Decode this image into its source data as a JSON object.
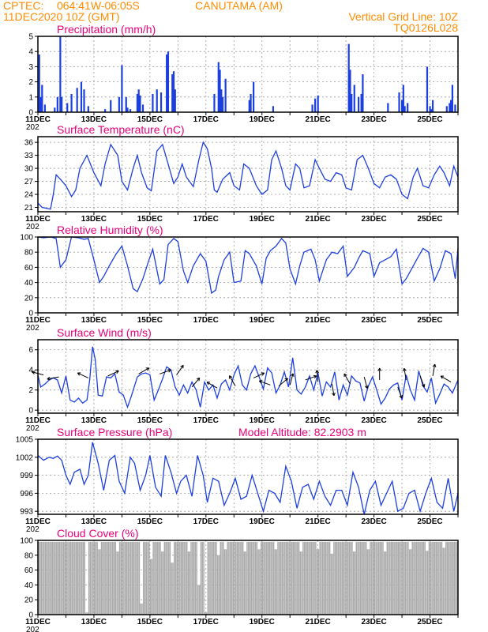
{
  "header": {
    "agency": "CPTEC:",
    "coords": "064:41W-06:05S",
    "station": "CANUTAMA (AM)",
    "run": "11DEC2020 10Z (GMT)",
    "grid_note": "Vertical Grid Line: 10Z",
    "code": "TQ0126L028"
  },
  "x_labels": [
    "11DEC",
    "13DEC",
    "15DEC",
    "17DEC",
    "19DEC",
    "21DEC",
    "23DEC",
    "25DEC"
  ],
  "x_sub_label": "202",
  "colors": {
    "line": "#1c3fe0",
    "bar": "#1c3fe0",
    "cloud": "#aaaaaa",
    "title": "#e8007a",
    "header": "#ff8c00"
  },
  "chart_data": [
    {
      "type": "bar",
      "title": "Precipitation (mm/h)",
      "ylim": [
        0,
        5
      ],
      "yticks": [
        0,
        1,
        2,
        3,
        4,
        5
      ],
      "x_range_days": [
        0,
        15
      ],
      "x": [
        0.05,
        0.1,
        0.15,
        0.25,
        0.6,
        0.7,
        0.8,
        0.85,
        1.05,
        1.2,
        1.4,
        1.55,
        1.65,
        1.8,
        2.4,
        2.6,
        2.9,
        3.0,
        3.15,
        3.2,
        3.3,
        3.55,
        3.6,
        3.65,
        3.75,
        4.1,
        4.25,
        4.4,
        4.6,
        4.65,
        4.8,
        4.85,
        4.9,
        6.3,
        6.45,
        6.5,
        6.55,
        6.6,
        6.7,
        7.55,
        7.6,
        7.7,
        8.4,
        9.8,
        9.9,
        10.0,
        11.1,
        11.15,
        11.2,
        11.3,
        11.45,
        11.55,
        11.6,
        12.5,
        12.9,
        13.0,
        13.05,
        13.1,
        13.2,
        13.9,
        14.0,
        14.05,
        14.1,
        14.6,
        14.7,
        14.75,
        14.8,
        14.9
      ],
      "values": [
        3.8,
        1.0,
        1.8,
        0.5,
        0.3,
        1.0,
        5.0,
        1.0,
        0.6,
        1.2,
        1.6,
        2.0,
        1.5,
        0.4,
        0.2,
        0.8,
        1.0,
        3.1,
        1.0,
        0.3,
        0.2,
        1.2,
        1.5,
        1.1,
        0.5,
        1.2,
        1.5,
        1.3,
        3.8,
        4.0,
        2.5,
        2.7,
        1.5,
        1.2,
        3.3,
        2.8,
        1.5,
        1.0,
        2.2,
        0.8,
        1.2,
        2.0,
        0.4,
        0.5,
        0.9,
        1.1,
        4.5,
        2.8,
        1.2,
        1.8,
        1.0,
        1.2,
        2.5,
        0.6,
        1.3,
        0.8,
        1.8,
        0.4,
        0.6,
        3.0,
        0.4,
        0.2,
        0.8,
        0.4,
        0.6,
        0.8,
        1.8,
        0.5
      ]
    },
    {
      "type": "line",
      "title": "Surface Temperature (nC)",
      "ylim": [
        20,
        37.3
      ],
      "yticks": [
        21,
        24,
        27,
        30,
        33,
        36
      ],
      "x_range_days": [
        0,
        15
      ],
      "x": [
        0,
        0.15,
        0.3,
        0.45,
        0.55,
        0.65,
        0.8,
        1.0,
        1.2,
        1.35,
        1.5,
        1.75,
        2.0,
        2.25,
        2.4,
        2.6,
        2.85,
        3.0,
        3.2,
        3.4,
        3.55,
        3.7,
        3.9,
        4.05,
        4.25,
        4.45,
        4.65,
        4.85,
        5.0,
        5.15,
        5.3,
        5.55,
        5.75,
        5.9,
        6.05,
        6.2,
        6.3,
        6.4,
        6.6,
        6.85,
        7.0,
        7.2,
        7.35,
        7.55,
        7.8,
        8.0,
        8.2,
        8.35,
        8.5,
        8.7,
        8.85,
        9.0,
        9.2,
        9.35,
        9.5,
        9.7,
        9.9,
        10.05,
        10.25,
        10.45,
        10.65,
        10.85,
        11.0,
        11.2,
        11.4,
        11.6,
        11.8,
        12.0,
        12.2,
        12.4,
        12.6,
        12.8,
        13.0,
        13.2,
        13.4,
        13.55,
        13.75,
        13.95,
        14.15,
        14.35,
        14.5,
        14.7,
        14.85,
        15.0
      ],
      "values": [
        22.0,
        21.0,
        20.8,
        20.6,
        24.0,
        28.5,
        27.5,
        26.0,
        23.5,
        25.0,
        30.0,
        33.0,
        29.0,
        26.0,
        31.0,
        35.5,
        33.0,
        27.0,
        25.0,
        30.0,
        33.0,
        29.0,
        25.5,
        24.8,
        34.0,
        35.5,
        31.0,
        26.5,
        28.0,
        31.0,
        28.0,
        25.8,
        32.0,
        36.0,
        34.5,
        30.0,
        25.0,
        24.5,
        27.5,
        29.0,
        26.0,
        25.0,
        31.0,
        30.0,
        26.0,
        24.0,
        25.0,
        32.0,
        34.0,
        30.0,
        26.0,
        25.0,
        31.0,
        30.0,
        25.5,
        26.0,
        32.0,
        30.0,
        27.5,
        27.0,
        29.0,
        28.5,
        25.5,
        25.0,
        32.0,
        33.0,
        30.0,
        26.5,
        25.5,
        28.0,
        28.5,
        27.5,
        24.0,
        23.0,
        28.0,
        30.0,
        26.0,
        25.5,
        28.5,
        30.5,
        29.0,
        26.0,
        30.5,
        28.0
      ]
    },
    {
      "type": "line",
      "title": "Relative Humidity (%)",
      "ylim": [
        0,
        100
      ],
      "yticks": [
        0,
        20,
        40,
        60,
        80,
        100
      ],
      "x_range_days": [
        0,
        15
      ],
      "x": [
        0,
        0.2,
        0.45,
        0.65,
        0.8,
        1.0,
        1.2,
        1.45,
        1.65,
        1.8,
        2.0,
        2.2,
        2.35,
        2.55,
        2.8,
        3.0,
        3.2,
        3.4,
        3.55,
        3.75,
        3.95,
        4.1,
        4.35,
        4.5,
        4.65,
        4.85,
        5.0,
        5.2,
        5.35,
        5.55,
        5.8,
        6.0,
        6.2,
        6.35,
        6.45,
        6.65,
        6.85,
        7.0,
        7.25,
        7.4,
        7.55,
        7.8,
        8.0,
        8.15,
        8.3,
        8.5,
        8.7,
        8.85,
        9.0,
        9.2,
        9.35,
        9.5,
        9.75,
        9.9,
        10.05,
        10.3,
        10.5,
        10.7,
        10.9,
        11.05,
        11.3,
        11.45,
        11.6,
        11.85,
        12.0,
        12.2,
        12.4,
        12.6,
        12.8,
        13.0,
        13.15,
        13.3,
        13.55,
        13.75,
        13.95,
        14.15,
        14.35,
        14.55,
        14.75,
        14.9,
        15.0
      ],
      "values": [
        100,
        99,
        100,
        98,
        60,
        70,
        100,
        99,
        97,
        98,
        70,
        40,
        48,
        62,
        78,
        88,
        62,
        32,
        28,
        45,
        68,
        84,
        38,
        44,
        90,
        98,
        94,
        55,
        40,
        62,
        78,
        68,
        26,
        30,
        48,
        70,
        80,
        40,
        42,
        82,
        78,
        62,
        38,
        72,
        82,
        88,
        98,
        92,
        58,
        38,
        62,
        80,
        84,
        70,
        42,
        70,
        80,
        78,
        88,
        48,
        60,
        72,
        82,
        78,
        48,
        66,
        70,
        74,
        84,
        38,
        45,
        55,
        72,
        85,
        80,
        42,
        58,
        82,
        78,
        45,
        85
      ]
    },
    {
      "type": "line",
      "title": "Surface Wind (m/s)",
      "ylim": [
        -0.3,
        7.0
      ],
      "yticks": [
        0,
        2,
        4,
        6
      ],
      "x_range_days": [
        0,
        15
      ],
      "x": [
        0,
        0.1,
        0.25,
        0.4,
        0.55,
        0.7,
        0.85,
        1.0,
        1.15,
        1.3,
        1.45,
        1.6,
        1.75,
        1.85,
        1.95,
        2.05,
        2.15,
        2.3,
        2.45,
        2.6,
        2.75,
        2.9,
        3.05,
        3.2,
        3.35,
        3.55,
        3.7,
        3.85,
        4.0,
        4.15,
        4.3,
        4.45,
        4.6,
        4.75,
        4.9,
        5.05,
        5.2,
        5.35,
        5.5,
        5.65,
        5.8,
        5.95,
        6.1,
        6.25,
        6.4,
        6.55,
        6.7,
        6.85,
        7.0,
        7.15,
        7.3,
        7.45,
        7.6,
        7.75,
        7.9,
        8.05,
        8.2,
        8.35,
        8.5,
        8.65,
        8.8,
        8.95,
        9.1,
        9.25,
        9.4,
        9.55,
        9.7,
        9.85,
        10.0,
        10.15,
        10.3,
        10.45,
        10.6,
        10.75,
        10.9,
        11.05,
        11.2,
        11.35,
        11.5,
        11.65,
        11.8,
        11.95,
        12.1,
        12.25,
        12.4,
        12.55,
        12.7,
        12.85,
        13.0,
        13.15,
        13.3,
        13.45,
        13.6,
        13.75,
        13.9,
        14.05,
        14.2,
        14.35,
        14.5,
        14.65,
        14.8,
        15.0
      ],
      "values": [
        3.5,
        2.3,
        2.6,
        3.0,
        3.2,
        3.0,
        1.7,
        3.4,
        1.0,
        0.8,
        1.2,
        0.7,
        1.0,
        3.0,
        6.3,
        5.0,
        1.5,
        1.4,
        3.3,
        3.2,
        3.6,
        1.8,
        1.5,
        0.3,
        1.5,
        3.3,
        3.6,
        3.7,
        3.5,
        1.0,
        2.0,
        3.1,
        4.3,
        4.0,
        2.3,
        1.5,
        2.5,
        1.7,
        2.8,
        2.0,
        0.3,
        2.8,
        2.0,
        2.5,
        1.2,
        2.6,
        3.0,
        2.0,
        3.5,
        4.4,
        2.5,
        2.0,
        3.6,
        4.4,
        3.3,
        2.1,
        4.2,
        3.7,
        1.7,
        2.5,
        3.8,
        2.3,
        5.2,
        2.0,
        1.6,
        2.3,
        3.4,
        2.0,
        3.7,
        1.4,
        2.8,
        2.3,
        3.8,
        1.0,
        2.5,
        1.5,
        3.4,
        2.9,
        2.7,
        0.9,
        2.4,
        3.3,
        2.0,
        0.6,
        1.2,
        2.1,
        2.5,
        2.7,
        1.0,
        3.5,
        2.0,
        1.0,
        3.9,
        2.4,
        1.8,
        3.2,
        0.7,
        1.6,
        2.6,
        2.3,
        1.7,
        3.0
      ],
      "barbs": [
        {
          "x": 0.2,
          "y": 3.5,
          "dir": 165
        },
        {
          "x": 0.75,
          "y": 3.3,
          "dir": 190
        },
        {
          "x": 1.8,
          "y": 3.2,
          "dir": 155
        },
        {
          "x": 2.5,
          "y": 3.4,
          "dir": 25
        },
        {
          "x": 3.6,
          "y": 3.6,
          "dir": 30
        },
        {
          "x": 4.35,
          "y": 3.6,
          "dir": 20
        },
        {
          "x": 4.95,
          "y": 3.5,
          "dir": 55
        },
        {
          "x": 5.5,
          "y": 2.3,
          "dir": 50
        },
        {
          "x": 6.4,
          "y": 2.2,
          "dir": 150
        },
        {
          "x": 7.05,
          "y": 2.4,
          "dir": 120
        },
        {
          "x": 7.7,
          "y": 3.2,
          "dir": 25
        },
        {
          "x": 8.3,
          "y": 2.5,
          "dir": 160
        },
        {
          "x": 8.6,
          "y": 2.4,
          "dir": 40
        },
        {
          "x": 9.0,
          "y": 2.5,
          "dir": 75
        },
        {
          "x": 9.55,
          "y": 3.0,
          "dir": 20
        },
        {
          "x": 10.0,
          "y": 2.8,
          "dir": 95
        },
        {
          "x": 10.5,
          "y": 2.6,
          "dir": 280
        },
        {
          "x": 11.15,
          "y": 2.6,
          "dir": 120
        },
        {
          "x": 11.65,
          "y": 3.3,
          "dir": 285
        },
        {
          "x": 12.2,
          "y": 3.0,
          "dir": 90
        },
        {
          "x": 12.85,
          "y": 2.3,
          "dir": 290
        },
        {
          "x": 13.15,
          "y": 3.0,
          "dir": 100
        },
        {
          "x": 13.65,
          "y": 3.4,
          "dir": 290
        },
        {
          "x": 14.1,
          "y": 3.4,
          "dir": 80
        },
        {
          "x": 14.75,
          "y": 2.8,
          "dir": 150
        }
      ]
    },
    {
      "type": "line",
      "title": "Surface Pressure (hPa)",
      "subtitle": "Model Altitude: 82.2903 m",
      "ylim": [
        992.5,
        1005
      ],
      "yticks": [
        993,
        996,
        999,
        1002,
        1005
      ],
      "x_range_days": [
        0,
        15
      ],
      "x": [
        0,
        0.2,
        0.4,
        0.55,
        0.7,
        0.85,
        1.0,
        1.15,
        1.3,
        1.5,
        1.65,
        1.8,
        1.95,
        2.15,
        2.35,
        2.55,
        2.75,
        2.9,
        3.1,
        3.3,
        3.45,
        3.65,
        3.85,
        4.0,
        4.2,
        4.4,
        4.55,
        4.75,
        4.95,
        5.1,
        5.3,
        5.5,
        5.7,
        5.9,
        6.05,
        6.25,
        6.45,
        6.65,
        6.85,
        7.05,
        7.25,
        7.45,
        7.65,
        7.85,
        8.05,
        8.25,
        8.45,
        8.65,
        8.85,
        9.05,
        9.25,
        9.45,
        9.65,
        9.85,
        10.05,
        10.25,
        10.45,
        10.65,
        10.85,
        11.05,
        11.25,
        11.45,
        11.65,
        11.85,
        12.05,
        12.25,
        12.45,
        12.65,
        12.85,
        13.05,
        13.25,
        13.45,
        13.65,
        13.85,
        14.05,
        14.25,
        14.45,
        14.65,
        14.85,
        15.0
      ],
      "values": [
        1002.3,
        1001.5,
        1002.0,
        1001.8,
        1002.2,
        1001.5,
        999.0,
        997.5,
        999.5,
        1000.0,
        997.5,
        999.0,
        1004.5,
        1001.0,
        996.5,
        1001.5,
        1002.3,
        998.0,
        996.0,
        1002.0,
        1001.0,
        996.5,
        999.0,
        1002.3,
        997.0,
        995.5,
        1002.3,
        999.5,
        996.0,
        998.0,
        999.0,
        995.5,
        1002.3,
        999.0,
        994.5,
        998.5,
        998.0,
        994.0,
        996.0,
        998.5,
        995.0,
        995.5,
        999.0,
        996.0,
        993.0,
        996.5,
        996.0,
        994.5,
        1000.5,
        998.0,
        993.5,
        997.0,
        997.5,
        995.0,
        998.0,
        995.5,
        994.0,
        996.5,
        996.5,
        994.0,
        999.5,
        997.0,
        992.5,
        996.5,
        998.0,
        994.0,
        996.0,
        998.0,
        993.0,
        993.5,
        996.0,
        996.5,
        993.0,
        996.0,
        998.5,
        994.5,
        993.5,
        998.5,
        993.0,
        996.0
      ]
    },
    {
      "type": "bar",
      "title": "Cloud Cover (%)",
      "ylim": [
        0,
        100
      ],
      "yticks": [
        0,
        20,
        40,
        60,
        80,
        100
      ],
      "x_range_days": [
        0,
        15
      ],
      "base_value": 98,
      "dips": [
        {
          "x": 1.75,
          "value": 3
        },
        {
          "x": 2.2,
          "value": 88
        },
        {
          "x": 2.85,
          "value": 85
        },
        {
          "x": 3.7,
          "value": 15
        },
        {
          "x": 4.05,
          "value": 75
        },
        {
          "x": 4.45,
          "value": 85
        },
        {
          "x": 4.8,
          "value": 70
        },
        {
          "x": 5.4,
          "value": 85
        },
        {
          "x": 5.75,
          "value": 40
        },
        {
          "x": 6.0,
          "value": 3
        },
        {
          "x": 6.45,
          "value": 80
        },
        {
          "x": 6.7,
          "value": 88
        },
        {
          "x": 7.4,
          "value": 85
        },
        {
          "x": 7.9,
          "value": 88
        },
        {
          "x": 8.5,
          "value": 88
        },
        {
          "x": 9.4,
          "value": 85
        },
        {
          "x": 10.0,
          "value": 88
        },
        {
          "x": 10.5,
          "value": 82
        },
        {
          "x": 11.3,
          "value": 85
        },
        {
          "x": 11.8,
          "value": 88
        },
        {
          "x": 12.4,
          "value": 85
        },
        {
          "x": 13.3,
          "value": 88
        },
        {
          "x": 13.9,
          "value": 86
        },
        {
          "x": 14.5,
          "value": 90
        }
      ]
    }
  ]
}
